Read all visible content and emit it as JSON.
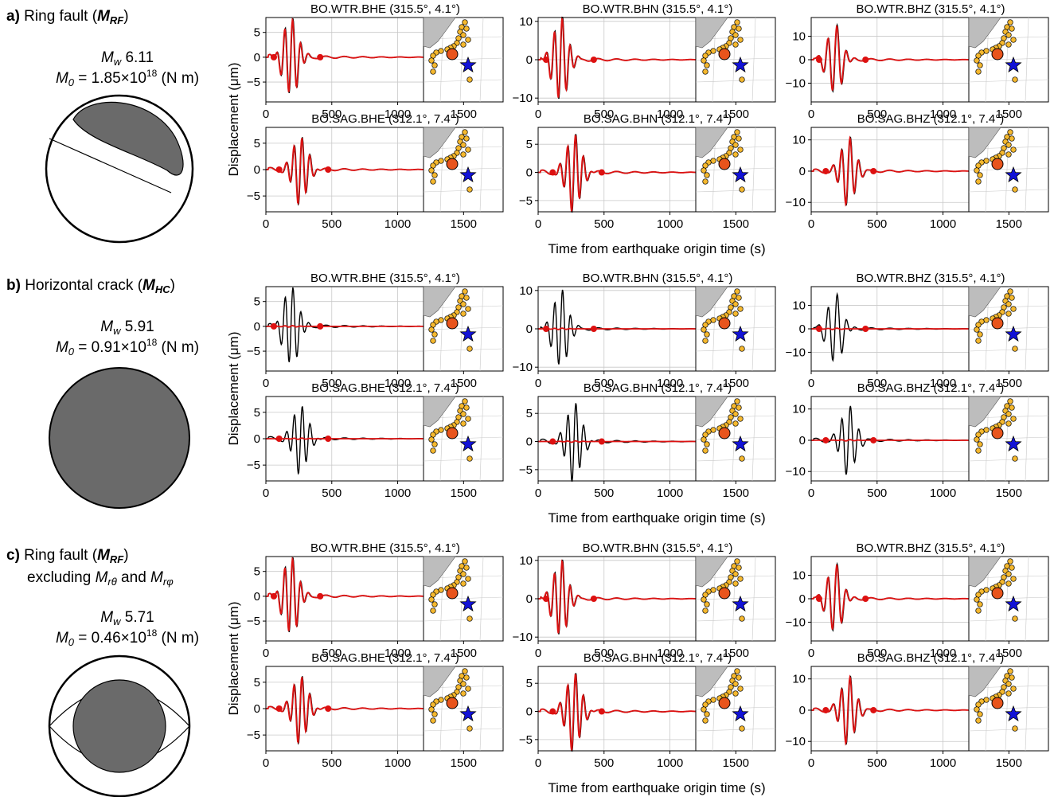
{
  "colors": {
    "observed": "#000000",
    "synthetic": "#dd1111",
    "beachball_fill": "#6a6a6a",
    "map_land": "#bdbdbd",
    "stations": "#f5b82e",
    "epicenter": "#e8541c",
    "source_star": "#1212d6",
    "grid": "#c8c8c8"
  },
  "icons": {
    "source": "star-icon",
    "epicenter": "circle-icon",
    "station": "dot-icon"
  },
  "axes": {
    "ylabel": "Displacement (μm)",
    "xlabel": "Time from earthquake origin time (s)",
    "xlim": [
      0,
      1800
    ],
    "xticks": [
      "0",
      "500",
      "1000",
      "1500"
    ]
  },
  "stations": [
    {
      "title": "BO.WTR.BHE (315.5°,  4.1°)"
    },
    {
      "title": "BO.WTR.BHN (315.5°,  4.1°)"
    },
    {
      "title": "BO.WTR.BHZ (315.5°,  4.1°)"
    },
    {
      "title": "BO.SAG.BHE (312.1°,  7.4°)"
    },
    {
      "title": "BO.SAG.BHN (312.1°,  7.4°)"
    },
    {
      "title": "BO.SAG.BHZ (312.1°,  7.4°)"
    }
  ],
  "panels": [
    {
      "letter": "a",
      "label": "Ring fault (",
      "label_sym": "M",
      "label_sub": "RF",
      "label_end": ")",
      "label_line2": "",
      "mw_value": "6.11",
      "m0_value": "1.85×10",
      "m0_exp": "18",
      "m0_unit": "(N m)",
      "synthetic_scale": 1.0
    },
    {
      "letter": "b",
      "label": "Horizontal crack (",
      "label_sym": "M",
      "label_sub": "HC",
      "label_end": ")",
      "label_line2": "",
      "mw_value": "5.91",
      "m0_value": "0.91×10",
      "m0_exp": "18",
      "m0_unit": "(N m)",
      "synthetic_scale": 0.02
    },
    {
      "letter": "c",
      "label": "Ring fault (",
      "label_sym": "M",
      "label_sub": "RF",
      "label_end": ")",
      "label_line2": "excluding",
      "label_line2_and": "and",
      "mw_value": "5.71",
      "m0_value": "0.46×10",
      "m0_exp": "18",
      "m0_unit": "(N m)",
      "synthetic_scale": 1.0
    }
  ],
  "chart_data": [
    {
      "panel": "a",
      "type": "line",
      "station": "BO.WTR.BHE",
      "ylim": [
        -9,
        8
      ],
      "yticks": [
        5,
        0,
        -5
      ],
      "peak": 8,
      "t_center": 190,
      "period": 60,
      "markers": [
        60,
        410
      ]
    },
    {
      "panel": "a",
      "type": "line",
      "station": "BO.WTR.BHN",
      "ylim": [
        -11,
        11
      ],
      "yticks": [
        10,
        0,
        -10
      ],
      "peak": 11,
      "t_center": 170,
      "period": 60,
      "markers": [
        60,
        420
      ]
    },
    {
      "panel": "a",
      "type": "line",
      "station": "BO.WTR.BHZ",
      "ylim": [
        -18,
        18
      ],
      "yticks": [
        10,
        0,
        -10
      ],
      "peak": 15,
      "t_center": 180,
      "period": 70,
      "markers": [
        60,
        410
      ]
    },
    {
      "panel": "a",
      "type": "line",
      "station": "BO.SAG.BHE",
      "ylim": [
        -8,
        8
      ],
      "yticks": [
        5,
        0,
        -5
      ],
      "peak": 6.5,
      "t_center": 260,
      "period": 60,
      "markers": [
        100,
        470
      ]
    },
    {
      "panel": "a",
      "type": "line",
      "station": "BO.SAG.BHN",
      "ylim": [
        -7,
        8
      ],
      "yticks": [
        5,
        0,
        -5
      ],
      "peak": 7,
      "t_center": 270,
      "period": 60,
      "markers": [
        110,
        480
      ]
    },
    {
      "panel": "a",
      "type": "line",
      "station": "BO.SAG.BHZ",
      "ylim": [
        -13,
        14
      ],
      "yticks": [
        10,
        0,
        -10
      ],
      "peak": 11,
      "t_center": 280,
      "period": 65,
      "markers": [
        110,
        470
      ]
    },
    {
      "panel": "b",
      "type": "line",
      "station": "BO.WTR.BHE",
      "ylim": [
        -9,
        8
      ],
      "yticks": [
        5,
        0,
        -5
      ],
      "peak": 8,
      "t_center": 190,
      "period": 60,
      "markers": [
        60,
        410
      ]
    },
    {
      "panel": "b",
      "type": "line",
      "station": "BO.WTR.BHN",
      "ylim": [
        -11,
        11
      ],
      "yticks": [
        10,
        0,
        -10
      ],
      "peak": 10,
      "t_center": 170,
      "period": 60,
      "markers": [
        60,
        420
      ]
    },
    {
      "panel": "b",
      "type": "line",
      "station": "BO.WTR.BHZ",
      "ylim": [
        -18,
        18
      ],
      "yticks": [
        10,
        0,
        -10
      ],
      "peak": 15,
      "t_center": 180,
      "period": 70,
      "markers": [
        60,
        410
      ]
    },
    {
      "panel": "b",
      "type": "line",
      "station": "BO.SAG.BHE",
      "ylim": [
        -8,
        8
      ],
      "yticks": [
        5,
        0,
        -5
      ],
      "peak": 6.5,
      "t_center": 260,
      "period": 60,
      "markers": [
        100,
        470
      ]
    },
    {
      "panel": "b",
      "type": "line",
      "station": "BO.SAG.BHN",
      "ylim": [
        -7,
        8
      ],
      "yticks": [
        5,
        0,
        -5
      ],
      "peak": 7,
      "t_center": 270,
      "period": 60,
      "markers": [
        110,
        480
      ]
    },
    {
      "panel": "b",
      "type": "line",
      "station": "BO.SAG.BHZ",
      "ylim": [
        -13,
        14
      ],
      "yticks": [
        10,
        0,
        -10
      ],
      "peak": 11,
      "t_center": 280,
      "period": 65,
      "markers": [
        110,
        470
      ]
    },
    {
      "panel": "c",
      "type": "line",
      "station": "BO.WTR.BHE",
      "ylim": [
        -9,
        8
      ],
      "yticks": [
        5,
        0,
        -5
      ],
      "peak": 8,
      "t_center": 190,
      "period": 60,
      "markers": [
        60,
        410
      ]
    },
    {
      "panel": "c",
      "type": "line",
      "station": "BO.WTR.BHN",
      "ylim": [
        -11,
        11
      ],
      "yticks": [
        10,
        0,
        -10
      ],
      "peak": 10,
      "t_center": 170,
      "period": 60,
      "markers": [
        60,
        420
      ]
    },
    {
      "panel": "c",
      "type": "line",
      "station": "BO.WTR.BHZ",
      "ylim": [
        -18,
        18
      ],
      "yticks": [
        10,
        0,
        -10
      ],
      "peak": 15,
      "t_center": 180,
      "period": 70,
      "markers": [
        60,
        410
      ]
    },
    {
      "panel": "c",
      "type": "line",
      "station": "BO.SAG.BHE",
      "ylim": [
        -8,
        8
      ],
      "yticks": [
        5,
        0,
        -5
      ],
      "peak": 6.5,
      "t_center": 260,
      "period": 60,
      "markers": [
        100,
        470
      ]
    },
    {
      "panel": "c",
      "type": "line",
      "station": "BO.SAG.BHN",
      "ylim": [
        -7,
        8
      ],
      "yticks": [
        5,
        0,
        -5
      ],
      "peak": 7,
      "t_center": 270,
      "period": 60,
      "markers": [
        110,
        480
      ]
    },
    {
      "panel": "c",
      "type": "line",
      "station": "BO.SAG.BHZ",
      "ylim": [
        -13,
        14
      ],
      "yticks": [
        10,
        0,
        -10
      ],
      "peak": 11,
      "t_center": 280,
      "period": 65,
      "markers": [
        110,
        470
      ]
    }
  ]
}
